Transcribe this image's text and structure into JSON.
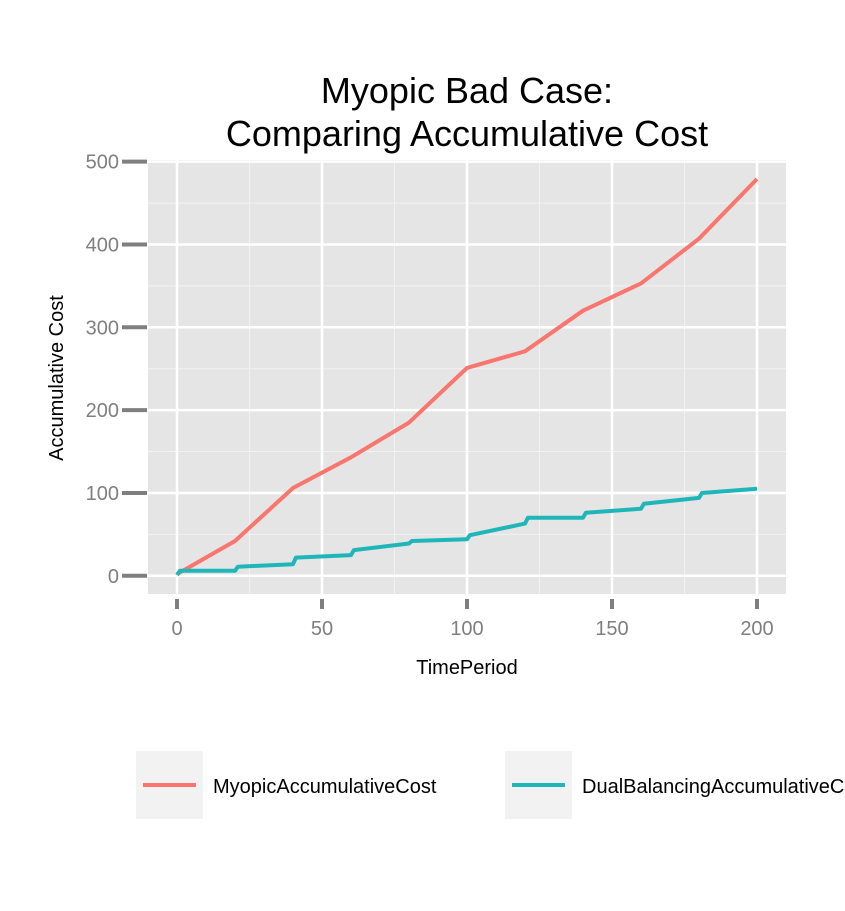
{
  "chart_data": {
    "type": "line",
    "title_lines": [
      "Myopic Bad Case:",
      "Comparing Accumulative Cost"
    ],
    "xlabel": "TimePeriod",
    "ylabel": "Accumulative Cost",
    "xlim": [
      -10,
      210
    ],
    "ylim": [
      -22,
      502
    ],
    "x_ticks": [
      0,
      50,
      100,
      150,
      200
    ],
    "y_ticks": [
      0,
      100,
      200,
      300,
      400,
      500
    ],
    "x_tick_labels": [
      "0",
      "50",
      "100",
      "150",
      "200"
    ],
    "y_tick_labels": [
      "0",
      "100",
      "200",
      "300",
      "400",
      "500"
    ],
    "grid": true,
    "legend_position": "bottom",
    "series": [
      {
        "name": "MyopicAccumulativeCost",
        "color": "#F8766D",
        "x": [
          0,
          20,
          40,
          60,
          80,
          100,
          120,
          140,
          160,
          180,
          200
        ],
        "y": [
          2,
          42,
          106,
          143,
          185,
          251,
          271,
          320,
          353,
          407,
          479
        ]
      },
      {
        "name": "DualBalancingAccumulativeCost",
        "color": "#1FB6B9",
        "x": [
          0,
          1,
          20,
          21,
          40,
          41,
          60,
          61,
          80,
          81,
          100,
          101,
          120,
          121,
          140,
          141,
          160,
          161,
          180,
          181,
          200
        ],
        "y": [
          1,
          6,
          6,
          11,
          14,
          22,
          25,
          31,
          39,
          42,
          44,
          49,
          63,
          70,
          70,
          76,
          81,
          87,
          94,
          100,
          105
        ]
      }
    ]
  }
}
